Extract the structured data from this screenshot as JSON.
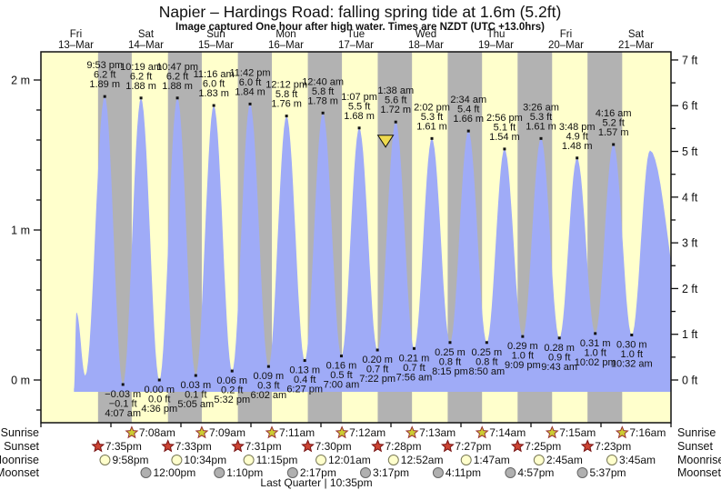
{
  "title": "Napier – Hardings Road: falling  spring tide at 1.6m (5.2ft)",
  "subtitle": "Image captured One hour after high water. Times are NZDT (UTC +13.0hrs)",
  "moon_phase_label": "Last Quarter | 10:35pm",
  "colors": {
    "daylight_band": "#ffffcc",
    "night_band": "#b2b2b2",
    "tide_fill": "#9fabf7",
    "day_label": "#ee3333",
    "sunrise_star": "#cccc33",
    "sunset_star": "#cc4433",
    "moonrise_circle": "#ffffcc",
    "moonset_circle": "#b0b0b0",
    "capture_triangle": "#eeda4f"
  },
  "astro": {
    "rows": {
      "sunrise": {
        "label": "Sunrise"
      },
      "sunset": {
        "label": "Sunset"
      },
      "moonrise": {
        "label": "Moonrise"
      },
      "moonset": {
        "label": "Moonset"
      }
    },
    "sunrise": [
      {
        "day": 1,
        "time": "7:08am"
      },
      {
        "day": 2,
        "time": "7:09am"
      },
      {
        "day": 3,
        "time": "7:11am"
      },
      {
        "day": 4,
        "time": "7:12am"
      },
      {
        "day": 5,
        "time": "7:13am"
      },
      {
        "day": 6,
        "time": "7:14am"
      },
      {
        "day": 7,
        "time": "7:15am"
      },
      {
        "day": 8,
        "time": "7:16am"
      }
    ],
    "sunset": [
      {
        "day": 0,
        "time": "7:35pm"
      },
      {
        "day": 1,
        "time": "7:33pm"
      },
      {
        "day": 2,
        "time": "7:31pm"
      },
      {
        "day": 3,
        "time": "7:30pm"
      },
      {
        "day": 4,
        "time": "7:28pm"
      },
      {
        "day": 5,
        "time": "7:27pm"
      },
      {
        "day": 6,
        "time": "7:25pm"
      },
      {
        "day": 7,
        "time": "7:23pm"
      }
    ],
    "moonrise": [
      {
        "day": 0,
        "time": "9:58pm"
      },
      {
        "day": 1,
        "time": "10:34pm"
      },
      {
        "day": 2,
        "time": "11:15pm"
      },
      {
        "day": 4,
        "time": "12:01am"
      },
      {
        "day": 5,
        "time": "12:52am"
      },
      {
        "day": 6,
        "time": "1:47am"
      },
      {
        "day": 7,
        "time": "2:45am"
      },
      {
        "day": 8,
        "time": "3:45am"
      }
    ],
    "moonset": [
      {
        "day": 1,
        "time": "12:00pm"
      },
      {
        "day": 2,
        "time": "1:10pm"
      },
      {
        "day": 3,
        "time": "2:17pm"
      },
      {
        "day": 4,
        "time": "3:17pm"
      },
      {
        "day": 5,
        "time": "4:11pm"
      },
      {
        "day": 6,
        "time": "4:57pm"
      },
      {
        "day": 7,
        "time": "5:37pm"
      }
    ]
  },
  "chart_data": {
    "type": "area",
    "x_range_days": 9,
    "days": [
      {
        "name": "Fri",
        "date": "13–Mar"
      },
      {
        "name": "Sat",
        "date": "14–Mar"
      },
      {
        "name": "Sun",
        "date": "15–Mar"
      },
      {
        "name": "Mon",
        "date": "16–Mar"
      },
      {
        "name": "Tue",
        "date": "17–Mar"
      },
      {
        "name": "Wed",
        "date": "18–Mar"
      },
      {
        "name": "Thu",
        "date": "19–Mar"
      },
      {
        "name": "Fri",
        "date": "20–Mar"
      },
      {
        "name": "Sat",
        "date": "21–Mar"
      }
    ],
    "y_axis_left": {
      "unit": "m",
      "major_ticks": [
        0,
        1,
        2
      ],
      "minor_step": 0.2,
      "labels": [
        "0 m",
        "1 m",
        "2 m"
      ]
    },
    "y_axis_right": {
      "unit": "ft",
      "major_ticks": [
        0,
        1,
        2,
        3,
        4,
        5,
        6,
        7
      ],
      "minor_step": 0.5,
      "labels": [
        "0 ft",
        "1 ft",
        "2 ft",
        "3 ft",
        "4 ft",
        "5 ft",
        "6 ft",
        "7 ft"
      ]
    },
    "ylim_m": [
      -0.28,
      2.18
    ],
    "extremes": [
      {
        "type": "high",
        "day": 0,
        "time": "9:53 pm",
        "ft": 6.2,
        "m": 1.89
      },
      {
        "type": "low",
        "day": 1,
        "time": "4:07 am",
        "ft": -0.1,
        "m": -0.03
      },
      {
        "type": "high",
        "day": 1,
        "time": "10:19 am",
        "ft": 6.2,
        "m": 1.88
      },
      {
        "type": "low",
        "day": 1,
        "time": "4:36 pm",
        "ft": 0.0,
        "m": 0.0
      },
      {
        "type": "high",
        "day": 1,
        "time": "10:47 pm",
        "ft": 6.2,
        "m": 1.88
      },
      {
        "type": "low",
        "day": 2,
        "time": "5:05 am",
        "ft": 0.1,
        "m": 0.03
      },
      {
        "type": "high",
        "day": 2,
        "time": "11:16 am",
        "ft": 6.0,
        "m": 1.83
      },
      {
        "type": "low",
        "day": 2,
        "time": "5:32 pm",
        "ft": 0.2,
        "m": 0.06
      },
      {
        "type": "high",
        "day": 2,
        "time": "11:42 pm",
        "ft": 6.0,
        "m": 1.84
      },
      {
        "type": "low",
        "day": 3,
        "time": "6:02 am",
        "ft": 0.3,
        "m": 0.09
      },
      {
        "type": "high",
        "day": 3,
        "time": "12:12 pm",
        "ft": 5.8,
        "m": 1.76
      },
      {
        "type": "low",
        "day": 3,
        "time": "6:27 pm",
        "ft": 0.4,
        "m": 0.13
      },
      {
        "type": "high",
        "day": 4,
        "time": "12:40 am",
        "ft": 5.8,
        "m": 1.78
      },
      {
        "type": "low",
        "day": 4,
        "time": "7:00 am",
        "ft": 0.5,
        "m": 0.16
      },
      {
        "type": "high",
        "day": 4,
        "time": "1:07 pm",
        "ft": 5.5,
        "m": 1.68
      },
      {
        "type": "low",
        "day": 4,
        "time": "7:22 pm",
        "ft": 0.7,
        "m": 0.2
      },
      {
        "type": "high",
        "day": 5,
        "time": "1:38 am",
        "ft": 5.6,
        "m": 1.72
      },
      {
        "type": "low",
        "day": 5,
        "time": "7:56 am",
        "ft": 0.7,
        "m": 0.21
      },
      {
        "type": "high",
        "day": 5,
        "time": "2:02 pm",
        "ft": 5.3,
        "m": 1.61
      },
      {
        "type": "low",
        "day": 5,
        "time": "8:15 pm",
        "ft": 0.8,
        "m": 0.25
      },
      {
        "type": "high",
        "day": 6,
        "time": "2:34 am",
        "ft": 5.4,
        "m": 1.66
      },
      {
        "type": "low",
        "day": 6,
        "time": "8:50 am",
        "ft": 0.8,
        "m": 0.25
      },
      {
        "type": "high",
        "day": 6,
        "time": "2:56 pm",
        "ft": 5.1,
        "m": 1.54
      },
      {
        "type": "low",
        "day": 6,
        "time": "9:09 pm",
        "ft": 1.0,
        "m": 0.29
      },
      {
        "type": "high",
        "day": 7,
        "time": "3:26 am",
        "ft": 5.3,
        "m": 1.61
      },
      {
        "type": "low",
        "day": 7,
        "time": "9:43 am",
        "ft": 0.9,
        "m": 0.28
      },
      {
        "type": "high",
        "day": 7,
        "time": "3:48 pm",
        "ft": 4.9,
        "m": 1.48
      },
      {
        "type": "low",
        "day": 7,
        "time": "10:02 pm",
        "ft": 1.0,
        "m": 0.31
      },
      {
        "type": "high",
        "day": 8,
        "time": "4:16 am",
        "ft": 5.2,
        "m": 1.57
      },
      {
        "type": "low",
        "day": 8,
        "time": "10:32 am",
        "ft": 1.0,
        "m": 0.3
      }
    ],
    "capture_marker": {
      "icon": "down-triangle",
      "at_high_day": 4,
      "at_high_time": "1:07 pm",
      "note": "image captured one hour after high water"
    },
    "curve_boundary_estimates": {
      "lead_in": [
        {
          "t": 11.3,
          "m": -0.06
        },
        {
          "t": 12.2,
          "m": 0.45
        },
        {
          "t": 15.2,
          "m": 0.03
        }
      ],
      "lead_out": [
        {
          "t": 208.8,
          "m": 1.53
        },
        {
          "t": 221.3,
          "m": 0.33
        }
      ]
    }
  }
}
